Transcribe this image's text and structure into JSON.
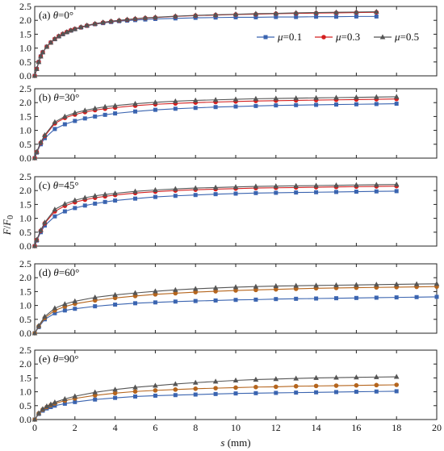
{
  "chart_data": {
    "type": "line",
    "xlabel_parts": {
      "var": "s",
      "unit": " (mm)"
    },
    "ylabel_parts": {
      "num": "F",
      "slash": "/",
      "den": "F",
      "sub": "0"
    },
    "xlim": [
      0,
      20
    ],
    "ylim": [
      0,
      2.5
    ],
    "x_ticks": [
      "0",
      "2",
      "4",
      "6",
      "8",
      "10",
      "12",
      "14",
      "16",
      "18",
      "20"
    ],
    "y_ticks": [
      "0.0",
      "0.5",
      "1.0",
      "1.5",
      "2.0",
      "2.5"
    ],
    "grid": false,
    "legend": {
      "placement": "inside-top-right-panel-a",
      "entries": [
        {
          "prefix": "μ",
          "value": "=0.1",
          "color": "#3a64b0",
          "marker": "square"
        },
        {
          "prefix": "μ",
          "value": "=0.3",
          "color": "#d42020",
          "marker": "circle"
        },
        {
          "prefix": "μ",
          "value": "=0.5",
          "color": "#555555",
          "marker": "triangle"
        }
      ]
    },
    "panels": [
      {
        "label_prefix": "(a) ",
        "label_theta": "θ",
        "label_value": "=0°",
        "series": [
          {
            "name": "μ=0.1",
            "color": "#3a64b0",
            "marker": "square",
            "x": [
              0,
              0.1,
              0.2,
              0.3,
              0.4,
              0.6,
              0.8,
              1.0,
              1.2,
              1.4,
              1.6,
              1.8,
              2.0,
              2.3,
              2.6,
              3.0,
              3.4,
              3.8,
              4.2,
              4.6,
              5.0,
              5.5,
              6.0,
              7.0,
              8.0,
              9.0,
              10.0,
              11.0,
              12.0,
              13.0,
              14.0,
              15.0,
              16.0,
              17.0
            ],
            "y": [
              0,
              0.25,
              0.5,
              0.7,
              0.85,
              1.05,
              1.2,
              1.32,
              1.42,
              1.5,
              1.57,
              1.63,
              1.68,
              1.74,
              1.8,
              1.86,
              1.9,
              1.94,
              1.97,
              1.99,
              2.01,
              2.03,
              2.05,
              2.07,
              2.09,
              2.1,
              2.11,
              2.11,
              2.12,
              2.12,
              2.13,
              2.13,
              2.14,
              2.14
            ]
          },
          {
            "name": "μ=0.3",
            "color": "#d42020",
            "marker": "circle",
            "x": [
              0,
              0.1,
              0.2,
              0.3,
              0.4,
              0.6,
              0.8,
              1.0,
              1.2,
              1.4,
              1.6,
              1.8,
              2.0,
              2.3,
              2.6,
              3.0,
              3.4,
              3.8,
              4.2,
              4.6,
              5.0,
              5.5,
              6.0,
              7.0,
              8.0,
              9.0,
              10.0,
              11.0,
              12.0,
              13.0,
              14.0,
              15.0,
              16.0,
              17.0
            ],
            "y": [
              0,
              0.25,
              0.5,
              0.7,
              0.85,
              1.05,
              1.2,
              1.33,
              1.43,
              1.51,
              1.58,
              1.64,
              1.69,
              1.75,
              1.81,
              1.87,
              1.92,
              1.96,
              1.99,
              2.02,
              2.05,
              2.08,
              2.1,
              2.14,
              2.17,
              2.19,
              2.21,
              2.22,
              2.24,
              2.25,
              2.26,
              2.27,
              2.28,
              2.29
            ]
          },
          {
            "name": "μ=0.5",
            "color": "#555555",
            "marker": "triangle",
            "x": [
              0,
              0.1,
              0.2,
              0.3,
              0.4,
              0.6,
              0.8,
              1.0,
              1.2,
              1.4,
              1.6,
              1.8,
              2.0,
              2.3,
              2.6,
              3.0,
              3.4,
              3.8,
              4.2,
              4.6,
              5.0,
              5.5,
              6.0,
              7.0,
              8.0,
              9.0,
              10.0,
              11.0,
              12.0,
              13.0,
              14.0,
              15.0,
              16.0,
              17.0
            ],
            "y": [
              0,
              0.25,
              0.5,
              0.7,
              0.85,
              1.05,
              1.2,
              1.33,
              1.43,
              1.51,
              1.58,
              1.64,
              1.69,
              1.76,
              1.82,
              1.88,
              1.93,
              1.97,
              2.0,
              2.03,
              2.06,
              2.09,
              2.11,
              2.15,
              2.18,
              2.2,
              2.22,
              2.24,
              2.25,
              2.27,
              2.28,
              2.29,
              2.3,
              2.31
            ]
          }
        ]
      },
      {
        "label_prefix": "(b) ",
        "label_theta": "θ",
        "label_value": "=30°",
        "series": [
          {
            "name": "μ=0.1",
            "color": "#3a64b0",
            "marker": "square",
            "x": [
              0,
              0.1,
              0.3,
              0.5,
              1.0,
              1.5,
              2.0,
              2.5,
              3.0,
              3.5,
              4.0,
              5.0,
              6.0,
              7.0,
              8.0,
              9.0,
              10.0,
              11.0,
              12.0,
              13.0,
              14.0,
              15.0,
              16.0,
              17.0,
              18.0
            ],
            "y": [
              0,
              0.2,
              0.5,
              0.72,
              1.05,
              1.22,
              1.34,
              1.43,
              1.5,
              1.56,
              1.61,
              1.68,
              1.74,
              1.78,
              1.81,
              1.84,
              1.86,
              1.88,
              1.9,
              1.91,
              1.92,
              1.93,
              1.94,
              1.95,
              1.96
            ]
          },
          {
            "name": "μ=0.3",
            "color": "#d42020",
            "marker": "circle",
            "x": [
              0,
              0.1,
              0.3,
              0.5,
              1.0,
              1.5,
              2.0,
              2.5,
              3.0,
              3.5,
              4.0,
              5.0,
              6.0,
              7.0,
              8.0,
              9.0,
              10.0,
              11.0,
              12.0,
              13.0,
              14.0,
              15.0,
              16.0,
              17.0,
              18.0
            ],
            "y": [
              0,
              0.22,
              0.55,
              0.8,
              1.25,
              1.45,
              1.57,
              1.66,
              1.73,
              1.78,
              1.82,
              1.89,
              1.94,
              1.97,
              2.0,
              2.02,
              2.04,
              2.06,
              2.07,
              2.08,
              2.09,
              2.1,
              2.11,
              2.12,
              2.13
            ]
          },
          {
            "name": "μ=0.5",
            "color": "#555555",
            "marker": "triangle",
            "x": [
              0,
              0.1,
              0.3,
              0.5,
              1.0,
              1.5,
              2.0,
              2.5,
              3.0,
              3.5,
              4.0,
              5.0,
              6.0,
              7.0,
              8.0,
              9.0,
              10.0,
              11.0,
              12.0,
              13.0,
              14.0,
              15.0,
              16.0,
              17.0,
              18.0
            ],
            "y": [
              0,
              0.23,
              0.57,
              0.83,
              1.3,
              1.5,
              1.63,
              1.72,
              1.79,
              1.85,
              1.89,
              1.96,
              2.01,
              2.05,
              2.08,
              2.1,
              2.12,
              2.14,
              2.15,
              2.16,
              2.17,
              2.18,
              2.19,
              2.2,
              2.21
            ]
          }
        ]
      },
      {
        "label_prefix": "(c) ",
        "label_theta": "θ",
        "label_value": "=45°",
        "series": [
          {
            "name": "μ=0.1",
            "color": "#3a64b0",
            "marker": "square",
            "x": [
              0,
              0.1,
              0.3,
              0.5,
              1.0,
              1.5,
              2.0,
              2.5,
              3.0,
              3.5,
              4.0,
              5.0,
              6.0,
              7.0,
              8.0,
              9.0,
              10.0,
              11.0,
              12.0,
              13.0,
              14.0,
              15.0,
              16.0,
              17.0,
              18.0
            ],
            "y": [
              0,
              0.2,
              0.5,
              0.74,
              1.07,
              1.25,
              1.37,
              1.46,
              1.53,
              1.59,
              1.64,
              1.71,
              1.77,
              1.81,
              1.84,
              1.87,
              1.89,
              1.91,
              1.92,
              1.93,
              1.94,
              1.95,
              1.96,
              1.97,
              1.98
            ]
          },
          {
            "name": "μ=0.3",
            "color": "#d42020",
            "marker": "circle",
            "x": [
              0,
              0.1,
              0.3,
              0.5,
              1.0,
              1.5,
              2.0,
              2.5,
              3.0,
              3.5,
              4.0,
              5.0,
              6.0,
              7.0,
              8.0,
              9.0,
              10.0,
              11.0,
              12.0,
              13.0,
              14.0,
              15.0,
              16.0,
              17.0,
              18.0
            ],
            "y": [
              0,
              0.22,
              0.55,
              0.82,
              1.25,
              1.45,
              1.58,
              1.67,
              1.74,
              1.79,
              1.84,
              1.91,
              1.96,
              2.0,
              2.03,
              2.05,
              2.07,
              2.09,
              2.1,
              2.11,
              2.12,
              2.13,
              2.14,
              2.15,
              2.16
            ]
          },
          {
            "name": "μ=0.5",
            "color": "#555555",
            "marker": "triangle",
            "x": [
              0,
              0.1,
              0.3,
              0.5,
              1.0,
              1.5,
              2.0,
              2.5,
              3.0,
              3.5,
              4.0,
              5.0,
              6.0,
              7.0,
              8.0,
              9.0,
              10.0,
              11.0,
              12.0,
              13.0,
              14.0,
              15.0,
              16.0,
              17.0,
              18.0
            ],
            "y": [
              0,
              0.23,
              0.57,
              0.85,
              1.32,
              1.52,
              1.65,
              1.74,
              1.81,
              1.86,
              1.9,
              1.97,
              2.02,
              2.06,
              2.09,
              2.11,
              2.13,
              2.15,
              2.16,
              2.17,
              2.18,
              2.19,
              2.2,
              2.21,
              2.22
            ]
          }
        ]
      },
      {
        "label_prefix": "(d) ",
        "label_theta": "θ",
        "label_value": "=60°",
        "series": [
          {
            "name": "μ=0.1",
            "color": "#3a64b0",
            "marker": "square",
            "x": [
              0,
              0.2,
              0.5,
              1.0,
              1.5,
              2.0,
              3.0,
              4.0,
              5.0,
              6.0,
              7.0,
              8.0,
              9.0,
              10.0,
              11.0,
              12.0,
              13.0,
              14.0,
              15.0,
              16.0,
              17.0,
              18.0,
              19.0,
              20.0
            ],
            "y": [
              0,
              0.22,
              0.5,
              0.72,
              0.82,
              0.88,
              0.97,
              1.03,
              1.08,
              1.11,
              1.14,
              1.16,
              1.18,
              1.2,
              1.21,
              1.23,
              1.24,
              1.25,
              1.26,
              1.27,
              1.28,
              1.29,
              1.3,
              1.31
            ]
          },
          {
            "name": "μ=0.3",
            "color": "#b5651d",
            "marker": "circle",
            "x": [
              0,
              0.2,
              0.5,
              1.0,
              1.5,
              2.0,
              3.0,
              4.0,
              5.0,
              6.0,
              7.0,
              8.0,
              9.0,
              10.0,
              11.0,
              12.0,
              13.0,
              14.0,
              15.0,
              16.0,
              17.0,
              18.0,
              19.0,
              20.0
            ],
            "y": [
              0,
              0.25,
              0.55,
              0.82,
              0.96,
              1.06,
              1.18,
              1.27,
              1.34,
              1.4,
              1.44,
              1.48,
              1.51,
              1.54,
              1.56,
              1.58,
              1.6,
              1.62,
              1.63,
              1.64,
              1.65,
              1.66,
              1.67,
              1.68
            ]
          },
          {
            "name": "μ=0.5",
            "color": "#555555",
            "marker": "triangle",
            "x": [
              0,
              0.2,
              0.5,
              1.0,
              1.5,
              2.0,
              3.0,
              4.0,
              5.0,
              6.0,
              7.0,
              8.0,
              9.0,
              10.0,
              11.0,
              12.0,
              13.0,
              14.0,
              15.0,
              16.0,
              17.0,
              18.0,
              19.0,
              20.0
            ],
            "y": [
              0,
              0.27,
              0.6,
              0.9,
              1.05,
              1.15,
              1.29,
              1.38,
              1.45,
              1.51,
              1.56,
              1.6,
              1.63,
              1.66,
              1.68,
              1.7,
              1.71,
              1.72,
              1.73,
              1.74,
              1.75,
              1.76,
              1.77,
              1.78
            ]
          }
        ]
      },
      {
        "label_prefix": "(e) ",
        "label_theta": "θ",
        "label_value": "=90°",
        "series": [
          {
            "name": "μ=0.1",
            "color": "#3a64b0",
            "marker": "square",
            "x": [
              0,
              0.2,
              0.4,
              0.6,
              0.8,
              1.0,
              1.5,
              2.0,
              3.0,
              4.0,
              5.0,
              6.0,
              7.0,
              8.0,
              9.0,
              10.0,
              11.0,
              12.0,
              13.0,
              14.0,
              15.0,
              16.0,
              17.0,
              18.0
            ],
            "y": [
              0,
              0.2,
              0.32,
              0.4,
              0.45,
              0.5,
              0.57,
              0.63,
              0.72,
              0.78,
              0.83,
              0.86,
              0.88,
              0.9,
              0.92,
              0.94,
              0.95,
              0.96,
              0.97,
              0.98,
              0.99,
              1.0,
              1.01,
              1.02
            ]
          },
          {
            "name": "μ=0.3",
            "color": "#b5651d",
            "marker": "circle",
            "x": [
              0,
              0.2,
              0.4,
              0.6,
              0.8,
              1.0,
              1.5,
              2.0,
              3.0,
              4.0,
              5.0,
              6.0,
              7.0,
              8.0,
              9.0,
              10.0,
              11.0,
              12.0,
              13.0,
              14.0,
              15.0,
              16.0,
              17.0,
              18.0
            ],
            "y": [
              0,
              0.22,
              0.36,
              0.45,
              0.52,
              0.58,
              0.68,
              0.76,
              0.87,
              0.95,
              1.01,
              1.05,
              1.08,
              1.11,
              1.13,
              1.15,
              1.17,
              1.18,
              1.2,
              1.21,
              1.22,
              1.23,
              1.24,
              1.25
            ]
          },
          {
            "name": "μ=0.5",
            "color": "#555555",
            "marker": "triangle",
            "x": [
              0,
              0.2,
              0.4,
              0.6,
              0.8,
              1.0,
              1.5,
              2.0,
              3.0,
              4.0,
              5.0,
              6.0,
              7.0,
              8.0,
              9.0,
              10.0,
              11.0,
              12.0,
              13.0,
              14.0,
              15.0,
              16.0,
              17.0,
              18.0
            ],
            "y": [
              0,
              0.23,
              0.38,
              0.48,
              0.55,
              0.62,
              0.74,
              0.84,
              0.98,
              1.08,
              1.16,
              1.22,
              1.28,
              1.33,
              1.37,
              1.41,
              1.44,
              1.46,
              1.48,
              1.5,
              1.51,
              1.52,
              1.53,
              1.54
            ]
          }
        ]
      }
    ]
  }
}
